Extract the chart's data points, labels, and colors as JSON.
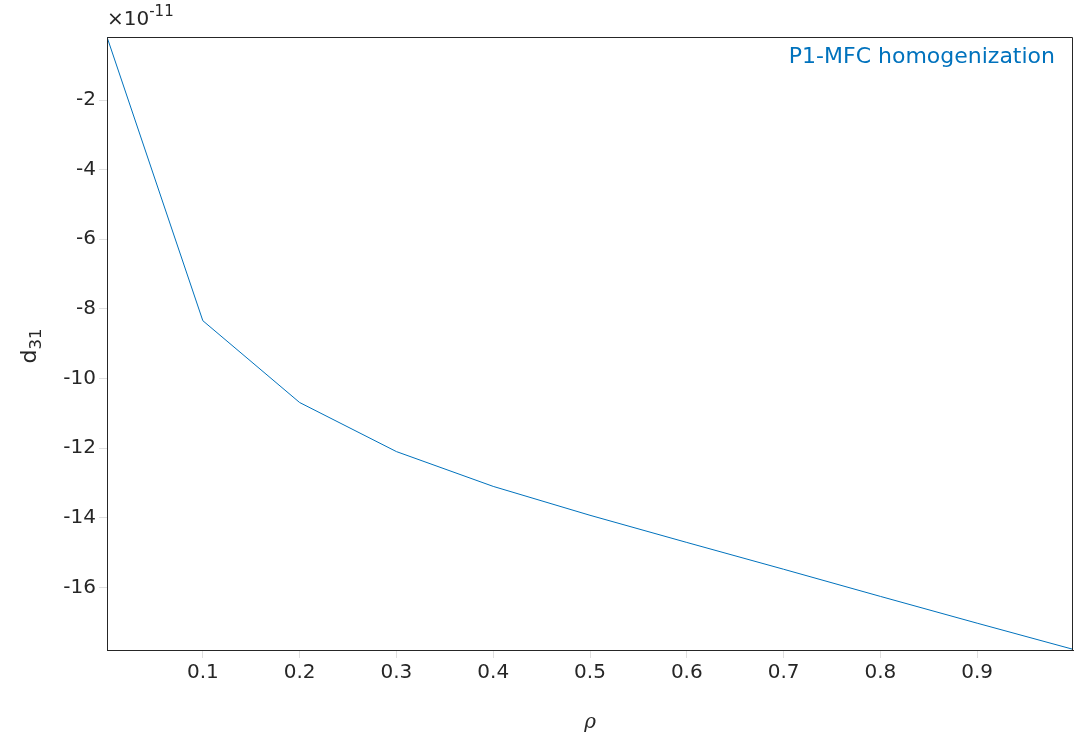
{
  "chart_data": {
    "type": "line",
    "xlabel": "ρ",
    "ylabel": "d$_{31}$",
    "annotations": [
      "×10$^{-11}$"
    ],
    "x": [
      0.001,
      0.1,
      0.2,
      0.3,
      0.4,
      0.5,
      0.6,
      0.7,
      0.8,
      0.9,
      0.999
    ],
    "series": [
      {
        "name": "P1-MFC homogenization",
        "color": "#0072bd",
        "values": [
          -0.19,
          -8.34,
          -10.69,
          -12.1,
          -13.1,
          -13.93,
          -14.71,
          -15.48,
          -16.26,
          -17.03,
          -17.78
        ]
      }
    ],
    "xlim": [
      0.001,
      0.999
    ],
    "xticks": [
      0.1,
      0.2,
      0.3,
      0.4,
      0.5,
      0.6,
      0.7,
      0.8,
      0.9
    ],
    "ylim": [
      -17.8,
      -0.19
    ],
    "yticks": [
      -16,
      -14,
      -12,
      -10,
      -8,
      -6,
      -4,
      -2
    ],
    "grid": false,
    "legend": "top right",
    "marker": "none",
    "line_style": "solid"
  }
}
